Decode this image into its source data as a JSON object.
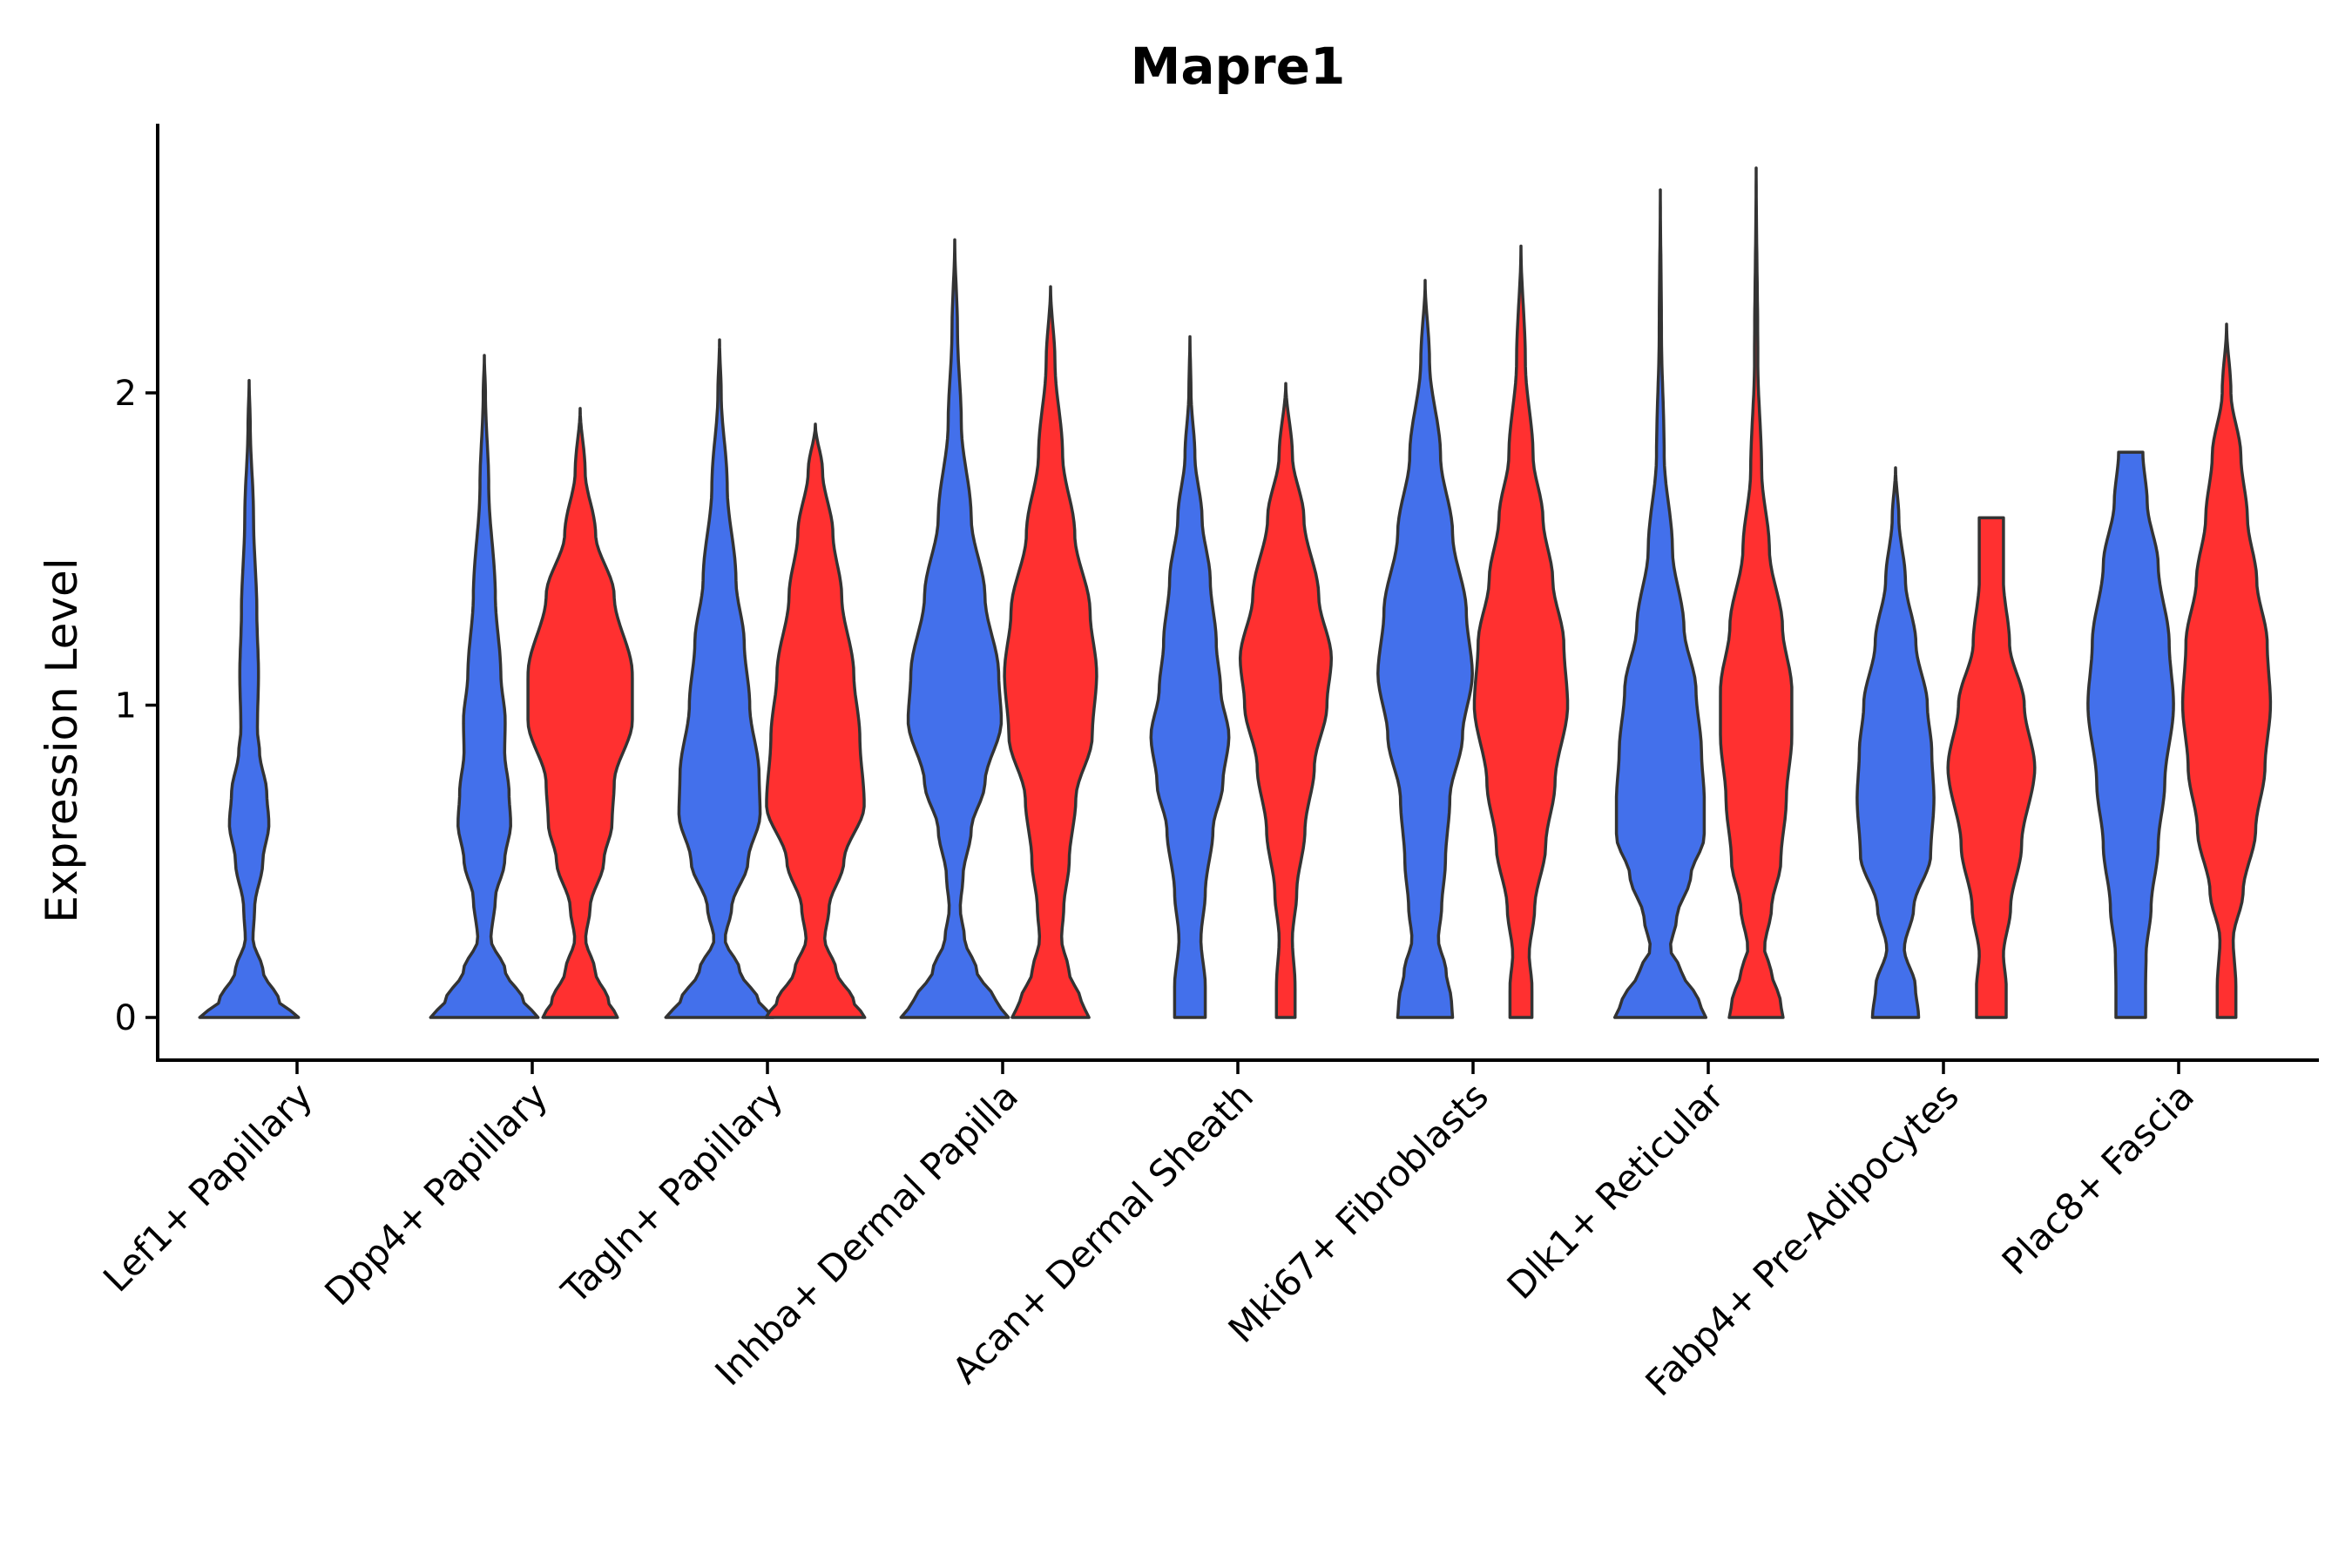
{
  "chart_data": {
    "type": "violin",
    "title": "Mapre1",
    "ylabel": "Expression Level",
    "xlabel": "",
    "ylim": [
      -0.14,
      2.88
    ],
    "yticks": [
      0,
      1,
      2
    ],
    "colors": {
      "group_a": "#4370EB",
      "group_b": "#FF3030",
      "outline": "#333333"
    },
    "categories": [
      "Lef1+ Papillary",
      "Dpp4+ Papillary",
      "Tagln+ Papillary",
      "Inhba+ Dermal Papilla",
      "Acan+ Dermal Sheath",
      "Mki67+ Fibroblasts",
      "Dlk1+ Reticular",
      "Fabp4+ Pre-Adipocytes",
      "Plac8+ Fascia"
    ],
    "violins": [
      {
        "category": "Lef1+ Papillary",
        "group": "a",
        "max": 2.04,
        "flat_top": false,
        "profile": [
          [
            0,
            0.9
          ],
          [
            0.05,
            0.55
          ],
          [
            0.15,
            0.25
          ],
          [
            0.25,
            0.07
          ],
          [
            0.35,
            0.1
          ],
          [
            0.5,
            0.25
          ],
          [
            0.62,
            0.36
          ],
          [
            0.72,
            0.32
          ],
          [
            0.85,
            0.19
          ],
          [
            0.92,
            0.15
          ],
          [
            1.1,
            0.17
          ],
          [
            1.3,
            0.14
          ],
          [
            1.6,
            0.08
          ],
          [
            1.9,
            0.02
          ],
          [
            2.04,
            0
          ]
        ]
      },
      {
        "category": "Dpp4+ Papillary",
        "group": "a",
        "max": 2.12,
        "flat_top": false,
        "profile": [
          [
            0,
            0.98
          ],
          [
            0.05,
            0.72
          ],
          [
            0.15,
            0.38
          ],
          [
            0.25,
            0.12
          ],
          [
            0.38,
            0.2
          ],
          [
            0.5,
            0.37
          ],
          [
            0.62,
            0.48
          ],
          [
            0.72,
            0.45
          ],
          [
            0.85,
            0.37
          ],
          [
            0.95,
            0.38
          ],
          [
            1.1,
            0.3
          ],
          [
            1.35,
            0.2
          ],
          [
            1.7,
            0.08
          ],
          [
            2.0,
            0.02
          ],
          [
            2.12,
            0
          ]
        ]
      },
      {
        "category": "Dpp4+ Papillary",
        "group": "b",
        "max": 1.95,
        "flat_top": false,
        "profile": [
          [
            0,
            0.68
          ],
          [
            0.05,
            0.52
          ],
          [
            0.15,
            0.27
          ],
          [
            0.25,
            0.1
          ],
          [
            0.35,
            0.18
          ],
          [
            0.5,
            0.43
          ],
          [
            0.62,
            0.58
          ],
          [
            0.75,
            0.62
          ],
          [
            0.95,
            0.95
          ],
          [
            1.1,
            0.95
          ],
          [
            1.35,
            0.62
          ],
          [
            1.55,
            0.28
          ],
          [
            1.75,
            0.09
          ],
          [
            1.95,
            0
          ]
        ]
      },
      {
        "category": "Tagln+ Papillary",
        "group": "a",
        "max": 2.17,
        "flat_top": false,
        "profile": [
          [
            0,
            0.98
          ],
          [
            0.05,
            0.72
          ],
          [
            0.15,
            0.37
          ],
          [
            0.25,
            0.1
          ],
          [
            0.35,
            0.22
          ],
          [
            0.5,
            0.52
          ],
          [
            0.65,
            0.74
          ],
          [
            0.78,
            0.72
          ],
          [
            1.0,
            0.55
          ],
          [
            1.2,
            0.45
          ],
          [
            1.4,
            0.3
          ],
          [
            1.7,
            0.14
          ],
          [
            2.0,
            0.03
          ],
          [
            2.17,
            0
          ]
        ]
      },
      {
        "category": "Tagln+ Papillary",
        "group": "b",
        "max": 1.9,
        "flat_top": false,
        "profile": [
          [
            0,
            0.9
          ],
          [
            0.05,
            0.7
          ],
          [
            0.15,
            0.38
          ],
          [
            0.25,
            0.17
          ],
          [
            0.35,
            0.25
          ],
          [
            0.5,
            0.52
          ],
          [
            0.68,
            0.89
          ],
          [
            0.9,
            0.81
          ],
          [
            1.1,
            0.7
          ],
          [
            1.35,
            0.48
          ],
          [
            1.55,
            0.32
          ],
          [
            1.75,
            0.13
          ],
          [
            1.9,
            0
          ]
        ]
      },
      {
        "category": "Inhba+ Dermal Papilla",
        "group": "a",
        "max": 2.49,
        "flat_top": false,
        "profile": [
          [
            0,
            0.98
          ],
          [
            0.05,
            0.75
          ],
          [
            0.15,
            0.4
          ],
          [
            0.25,
            0.18
          ],
          [
            0.35,
            0.1
          ],
          [
            0.45,
            0.15
          ],
          [
            0.6,
            0.3
          ],
          [
            0.75,
            0.55
          ],
          [
            0.95,
            0.85
          ],
          [
            1.1,
            0.8
          ],
          [
            1.35,
            0.55
          ],
          [
            1.6,
            0.3
          ],
          [
            1.9,
            0.12
          ],
          [
            2.2,
            0.05
          ],
          [
            2.49,
            0
          ]
        ]
      },
      {
        "category": "Inhba+ Dermal Papilla",
        "group": "b",
        "max": 2.34,
        "flat_top": false,
        "profile": [
          [
            0,
            0.7
          ],
          [
            0.05,
            0.56
          ],
          [
            0.15,
            0.33
          ],
          [
            0.25,
            0.2
          ],
          [
            0.35,
            0.24
          ],
          [
            0.5,
            0.34
          ],
          [
            0.7,
            0.46
          ],
          [
            0.9,
            0.76
          ],
          [
            1.1,
            0.84
          ],
          [
            1.3,
            0.72
          ],
          [
            1.55,
            0.44
          ],
          [
            1.8,
            0.22
          ],
          [
            2.1,
            0.08
          ],
          [
            2.34,
            0
          ]
        ]
      },
      {
        "category": "Acan+ Dermal Sheath",
        "group": "a",
        "max": 2.18,
        "flat_top": false,
        "profile": [
          [
            0,
            0.28
          ],
          [
            0.1,
            0.28
          ],
          [
            0.25,
            0.2
          ],
          [
            0.4,
            0.28
          ],
          [
            0.6,
            0.42
          ],
          [
            0.75,
            0.6
          ],
          [
            0.9,
            0.71
          ],
          [
            1.05,
            0.56
          ],
          [
            1.2,
            0.48
          ],
          [
            1.4,
            0.37
          ],
          [
            1.6,
            0.22
          ],
          [
            1.8,
            0.09
          ],
          [
            2.0,
            0.02
          ],
          [
            2.18,
            0
          ]
        ]
      },
      {
        "category": "Acan+ Dermal Sheath",
        "group": "b",
        "max": 2.03,
        "flat_top": false,
        "profile": [
          [
            0,
            0.17
          ],
          [
            0.1,
            0.17
          ],
          [
            0.25,
            0.12
          ],
          [
            0.4,
            0.2
          ],
          [
            0.6,
            0.35
          ],
          [
            0.8,
            0.52
          ],
          [
            1.0,
            0.75
          ],
          [
            1.15,
            0.83
          ],
          [
            1.35,
            0.6
          ],
          [
            1.6,
            0.33
          ],
          [
            1.8,
            0.12
          ],
          [
            2.03,
            0
          ]
        ]
      },
      {
        "category": "Mki67+ Fibroblasts",
        "group": "a",
        "max": 2.36,
        "flat_top": false,
        "profile": [
          [
            0,
            0.5
          ],
          [
            0.05,
            0.48
          ],
          [
            0.15,
            0.38
          ],
          [
            0.25,
            0.24
          ],
          [
            0.35,
            0.3
          ],
          [
            0.5,
            0.37
          ],
          [
            0.7,
            0.45
          ],
          [
            0.9,
            0.68
          ],
          [
            1.1,
            0.86
          ],
          [
            1.3,
            0.75
          ],
          [
            1.55,
            0.5
          ],
          [
            1.8,
            0.28
          ],
          [
            2.1,
            0.08
          ],
          [
            2.36,
            0
          ]
        ]
      },
      {
        "category": "Mki67+ Fibroblasts",
        "group": "b",
        "max": 2.47,
        "flat_top": false,
        "profile": [
          [
            0,
            0.2
          ],
          [
            0.1,
            0.2
          ],
          [
            0.2,
            0.15
          ],
          [
            0.35,
            0.25
          ],
          [
            0.55,
            0.45
          ],
          [
            0.75,
            0.62
          ],
          [
            1.0,
            0.85
          ],
          [
            1.2,
            0.78
          ],
          [
            1.4,
            0.58
          ],
          [
            1.6,
            0.4
          ],
          [
            1.8,
            0.22
          ],
          [
            2.1,
            0.08
          ],
          [
            2.47,
            0
          ]
        ]
      },
      {
        "category": "Dlk1+ Reticular",
        "group": "a",
        "max": 2.65,
        "flat_top": false,
        "profile": [
          [
            0,
            0.83
          ],
          [
            0.05,
            0.7
          ],
          [
            0.15,
            0.38
          ],
          [
            0.22,
            0.18
          ],
          [
            0.32,
            0.3
          ],
          [
            0.45,
            0.55
          ],
          [
            0.58,
            0.8
          ],
          [
            0.7,
            0.8
          ],
          [
            0.85,
            0.75
          ],
          [
            1.05,
            0.65
          ],
          [
            1.25,
            0.43
          ],
          [
            1.5,
            0.22
          ],
          [
            1.8,
            0.07
          ],
          [
            2.2,
            0.02
          ],
          [
            2.65,
            0
          ]
        ]
      },
      {
        "category": "Dlk1+ Reticular",
        "group": "b",
        "max": 2.72,
        "flat_top": false,
        "profile": [
          [
            0,
            0.49
          ],
          [
            0.05,
            0.44
          ],
          [
            0.15,
            0.27
          ],
          [
            0.22,
            0.15
          ],
          [
            0.35,
            0.28
          ],
          [
            0.5,
            0.45
          ],
          [
            0.7,
            0.55
          ],
          [
            0.9,
            0.65
          ],
          [
            1.05,
            0.65
          ],
          [
            1.25,
            0.48
          ],
          [
            1.5,
            0.24
          ],
          [
            1.75,
            0.1
          ],
          [
            2.1,
            0.03
          ],
          [
            2.72,
            0
          ]
        ]
      },
      {
        "category": "Fabp4+ Pre-Adipocytes",
        "group": "a",
        "max": 1.76,
        "flat_top": false,
        "profile": [
          [
            0,
            0.42
          ],
          [
            0.1,
            0.36
          ],
          [
            0.22,
            0.16
          ],
          [
            0.35,
            0.33
          ],
          [
            0.52,
            0.64
          ],
          [
            0.7,
            0.7
          ],
          [
            0.85,
            0.66
          ],
          [
            1.0,
            0.58
          ],
          [
            1.2,
            0.37
          ],
          [
            1.4,
            0.18
          ],
          [
            1.6,
            0.06
          ],
          [
            1.76,
            0
          ]
        ]
      },
      {
        "category": "Fabp4+ Pre-Adipocytes",
        "group": "b",
        "max": 1.6,
        "flat_top": true,
        "profile": [
          [
            0,
            0.27
          ],
          [
            0.1,
            0.27
          ],
          [
            0.2,
            0.22
          ],
          [
            0.35,
            0.35
          ],
          [
            0.55,
            0.55
          ],
          [
            0.8,
            0.79
          ],
          [
            1.0,
            0.6
          ],
          [
            1.2,
            0.33
          ],
          [
            1.4,
            0.22
          ],
          [
            1.6,
            0.22
          ]
        ]
      },
      {
        "category": "Plac8+ Fascia",
        "group": "a",
        "max": 1.81,
        "flat_top": true,
        "profile": [
          [
            0,
            0.27
          ],
          [
            0.1,
            0.27
          ],
          [
            0.2,
            0.28
          ],
          [
            0.35,
            0.37
          ],
          [
            0.55,
            0.5
          ],
          [
            0.75,
            0.62
          ],
          [
            1.0,
            0.78
          ],
          [
            1.2,
            0.7
          ],
          [
            1.45,
            0.5
          ],
          [
            1.65,
            0.3
          ],
          [
            1.81,
            0.22
          ]
        ]
      },
      {
        "category": "Plac8+ Fascia",
        "group": "b",
        "max": 2.22,
        "flat_top": false,
        "profile": [
          [
            0,
            0.17
          ],
          [
            0.1,
            0.17
          ],
          [
            0.25,
            0.12
          ],
          [
            0.4,
            0.3
          ],
          [
            0.6,
            0.53
          ],
          [
            0.8,
            0.7
          ],
          [
            1.0,
            0.8
          ],
          [
            1.2,
            0.74
          ],
          [
            1.4,
            0.55
          ],
          [
            1.6,
            0.38
          ],
          [
            1.8,
            0.26
          ],
          [
            2.0,
            0.08
          ],
          [
            2.22,
            0
          ]
        ]
      }
    ]
  }
}
